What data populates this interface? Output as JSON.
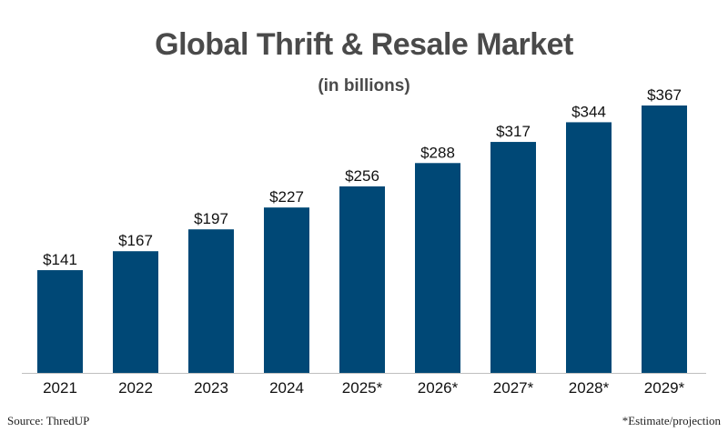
{
  "title": "Global Thrift & Resale Market",
  "subtitle": "(in billions)",
  "source": "Source: ThredUP",
  "note": "*Estimate/projection",
  "colors": {
    "bar": "#004876",
    "axis": "#bfbfbf",
    "text": "#111111",
    "title": "#4a4a4a"
  },
  "chart_data": {
    "type": "bar",
    "title": "Global Thrift & Resale Market",
    "subtitle": "(in billions)",
    "categories": [
      "2021",
      "2022",
      "2023",
      "2024",
      "2025*",
      "2026*",
      "2027*",
      "2028*",
      "2029*"
    ],
    "values": [
      141,
      167,
      197,
      227,
      256,
      288,
      317,
      344,
      367
    ],
    "data_labels": [
      "$141",
      "$167",
      "$197",
      "$227",
      "$256",
      "$288",
      "$317",
      "$344",
      "$367"
    ],
    "xlabel": "",
    "ylabel": "",
    "ylim": [
      0,
      367
    ],
    "grid": false,
    "legend": "none"
  }
}
